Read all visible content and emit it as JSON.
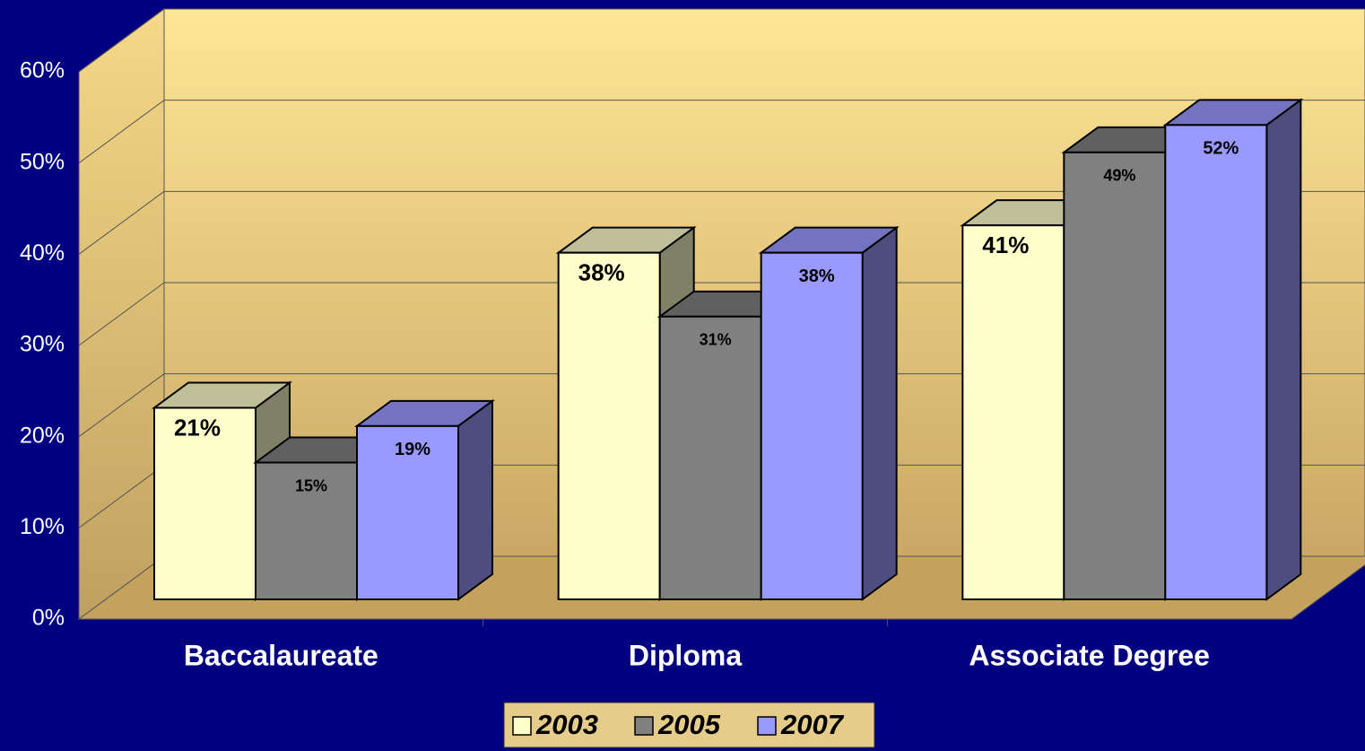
{
  "chart_data": {
    "type": "bar3d",
    "categories": [
      "Baccalaureate",
      "Diploma",
      "Associate Degree"
    ],
    "series": [
      {
        "name": "2003",
        "color": "#ffffcc",
        "values": [
          21,
          38,
          41
        ],
        "value_labels": [
          "21%",
          "38%",
          "41%"
        ]
      },
      {
        "name": "2005",
        "color": "#808080",
        "values": [
          15,
          31,
          49
        ],
        "value_labels": [
          "15%",
          "31%",
          "49%"
        ]
      },
      {
        "name": "2007",
        "color": "#9999ff",
        "values": [
          19,
          38,
          52
        ],
        "value_labels": [
          "19%",
          "38%",
          "52%"
        ]
      }
    ],
    "ylim": [
      0,
      60
    ],
    "yticks": [
      {
        "value": 0,
        "label": "0%"
      },
      {
        "value": 10,
        "label": "10%"
      },
      {
        "value": 20,
        "label": "20%"
      },
      {
        "value": 30,
        "label": "30%"
      },
      {
        "value": 40,
        "label": "40%"
      },
      {
        "value": 50,
        "label": "50%"
      },
      {
        "value": 60,
        "label": "60%"
      }
    ],
    "grid": true,
    "legend": "bottom"
  }
}
